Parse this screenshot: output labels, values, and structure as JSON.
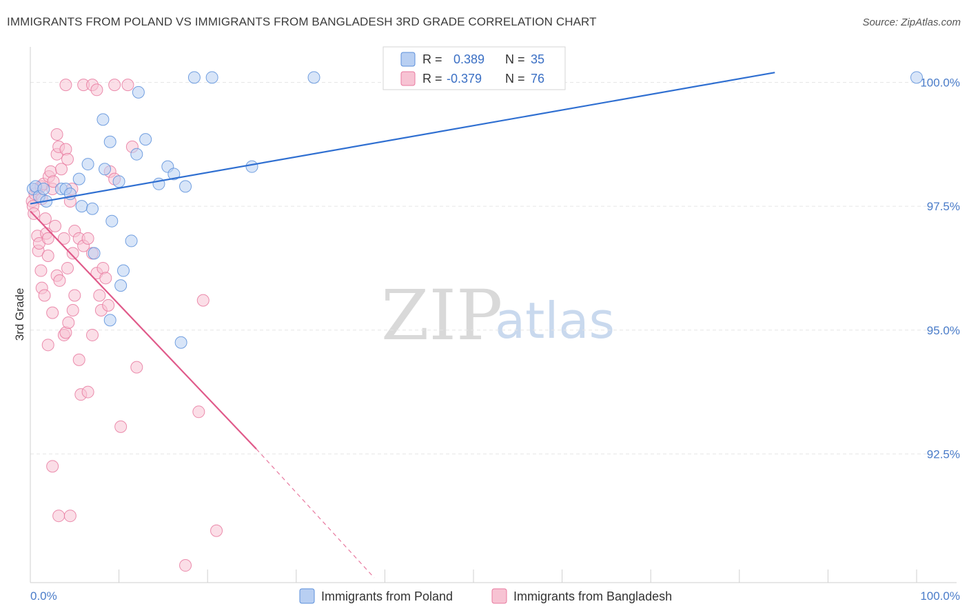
{
  "title": "IMMIGRANTS FROM POLAND VS IMMIGRANTS FROM BANGLADESH 3RD GRADE CORRELATION CHART",
  "source": "Source: ZipAtlas.com",
  "watermark": {
    "zip": "ZIP",
    "atlas": "atlas"
  },
  "legend": {
    "r_label": "R =",
    "n_label": "N =",
    "rows": [
      {
        "r": "0.389",
        "n": "35"
      },
      {
        "r": "-0.379",
        "n": "76"
      }
    ]
  },
  "chart_data": {
    "type": "scatter",
    "ylabel": "3rd Grade",
    "xlim": [
      0,
      100
    ],
    "ylim": [
      90,
      100.55
    ],
    "x_tick_labels": [
      "0.0%",
      "100.0%"
    ],
    "y_ticks": [
      92.5,
      95.0,
      97.5,
      100.0
    ],
    "y_tick_labels": [
      "92.5%",
      "95.0%",
      "97.5%",
      "100.0%"
    ],
    "colors": {
      "poland": "#5b8fdb",
      "bangladesh": "#e8799f",
      "poland_fill": "#b8cff2",
      "bangladesh_fill": "#f7c3d3"
    },
    "series": [
      {
        "name": "Immigrants from Poland",
        "trend": {
          "x0": 0,
          "y0": 97.55,
          "x1": 84,
          "y1": 100.2
        },
        "points": [
          [
            0.3,
            97.85
          ],
          [
            0.6,
            97.9
          ],
          [
            1.0,
            97.7
          ],
          [
            1.5,
            97.85
          ],
          [
            1.8,
            97.6
          ],
          [
            3.5,
            97.85
          ],
          [
            4.0,
            97.85
          ],
          [
            4.5,
            97.75
          ],
          [
            5.5,
            98.05
          ],
          [
            6.5,
            98.35
          ],
          [
            5.8,
            97.5
          ],
          [
            7.0,
            97.45
          ],
          [
            7.2,
            96.55
          ],
          [
            8.2,
            99.25
          ],
          [
            8.4,
            98.25
          ],
          [
            9.0,
            95.2
          ],
          [
            9.2,
            97.2
          ],
          [
            9.0,
            98.8
          ],
          [
            10.0,
            98.0
          ],
          [
            10.5,
            96.2
          ],
          [
            10.2,
            95.9
          ],
          [
            11.4,
            96.8
          ],
          [
            12.0,
            98.55
          ],
          [
            12.2,
            99.8
          ],
          [
            13.0,
            98.85
          ],
          [
            14.5,
            97.95
          ],
          [
            15.5,
            98.3
          ],
          [
            16.2,
            98.15
          ],
          [
            17.0,
            94.75
          ],
          [
            17.5,
            97.9
          ],
          [
            18.5,
            100.1
          ],
          [
            20.5,
            100.1
          ],
          [
            25.0,
            98.3
          ],
          [
            32.0,
            100.1
          ],
          [
            100.0,
            100.1
          ]
        ]
      },
      {
        "name": "Immigrants from Bangladesh",
        "trend": {
          "x0": 0,
          "y0": 97.4,
          "x1": 25.5,
          "y1": 92.6
        },
        "trend_ext": {
          "x0": 25.5,
          "y0": 92.6,
          "x1": 38.8,
          "y1": 90.0
        },
        "points": [
          [
            0.2,
            97.6
          ],
          [
            0.3,
            97.5
          ],
          [
            0.4,
            97.35
          ],
          [
            0.5,
            97.75
          ],
          [
            0.7,
            97.85
          ],
          [
            0.8,
            96.9
          ],
          [
            0.9,
            96.6
          ],
          [
            1.0,
            96.75
          ],
          [
            1.2,
            97.9
          ],
          [
            1.3,
            97.65
          ],
          [
            1.5,
            97.95
          ],
          [
            1.7,
            97.25
          ],
          [
            1.8,
            96.95
          ],
          [
            2.0,
            96.5
          ],
          [
            2.0,
            96.85
          ],
          [
            2.1,
            98.1
          ],
          [
            2.3,
            98.2
          ],
          [
            2.5,
            97.85
          ],
          [
            2.6,
            98.0
          ],
          [
            2.8,
            97.1
          ],
          [
            3.0,
            98.55
          ],
          [
            3.0,
            98.95
          ],
          [
            3.2,
            98.7
          ],
          [
            3.5,
            98.25
          ],
          [
            3.8,
            96.85
          ],
          [
            4.0,
            98.65
          ],
          [
            4.2,
            98.45
          ],
          [
            4.5,
            97.6
          ],
          [
            4.7,
            97.85
          ],
          [
            4.8,
            96.55
          ],
          [
            5.0,
            97.0
          ],
          [
            5.5,
            96.85
          ],
          [
            6.0,
            96.7
          ],
          [
            6.5,
            96.85
          ],
          [
            7.0,
            96.55
          ],
          [
            1.2,
            96.2
          ],
          [
            1.3,
            95.85
          ],
          [
            1.6,
            95.7
          ],
          [
            2.0,
            94.7
          ],
          [
            2.5,
            95.35
          ],
          [
            3.0,
            96.1
          ],
          [
            3.3,
            96.0
          ],
          [
            3.8,
            94.9
          ],
          [
            4.0,
            94.95
          ],
          [
            4.2,
            96.25
          ],
          [
            4.3,
            95.15
          ],
          [
            4.8,
            95.4
          ],
          [
            5.0,
            95.7
          ],
          [
            5.5,
            94.4
          ],
          [
            5.7,
            93.7
          ],
          [
            6.5,
            93.75
          ],
          [
            7.0,
            94.9
          ],
          [
            7.5,
            96.15
          ],
          [
            7.8,
            95.7
          ],
          [
            8.0,
            95.4
          ],
          [
            8.2,
            96.25
          ],
          [
            8.5,
            96.05
          ],
          [
            8.8,
            95.5
          ],
          [
            9.0,
            98.2
          ],
          [
            9.5,
            98.05
          ],
          [
            10.2,
            93.05
          ],
          [
            11.0,
            99.95
          ],
          [
            11.5,
            98.7
          ],
          [
            12.0,
            94.25
          ],
          [
            2.5,
            92.25
          ],
          [
            3.2,
            91.25
          ],
          [
            4.5,
            91.25
          ],
          [
            4.0,
            99.95
          ],
          [
            6.0,
            99.95
          ],
          [
            7.0,
            99.95
          ],
          [
            7.5,
            99.85
          ],
          [
            9.5,
            99.95
          ],
          [
            19.0,
            93.35
          ],
          [
            19.5,
            95.6
          ],
          [
            17.5,
            90.25
          ],
          [
            21.0,
            90.95
          ]
        ]
      }
    ],
    "legend_position": "top-center"
  }
}
